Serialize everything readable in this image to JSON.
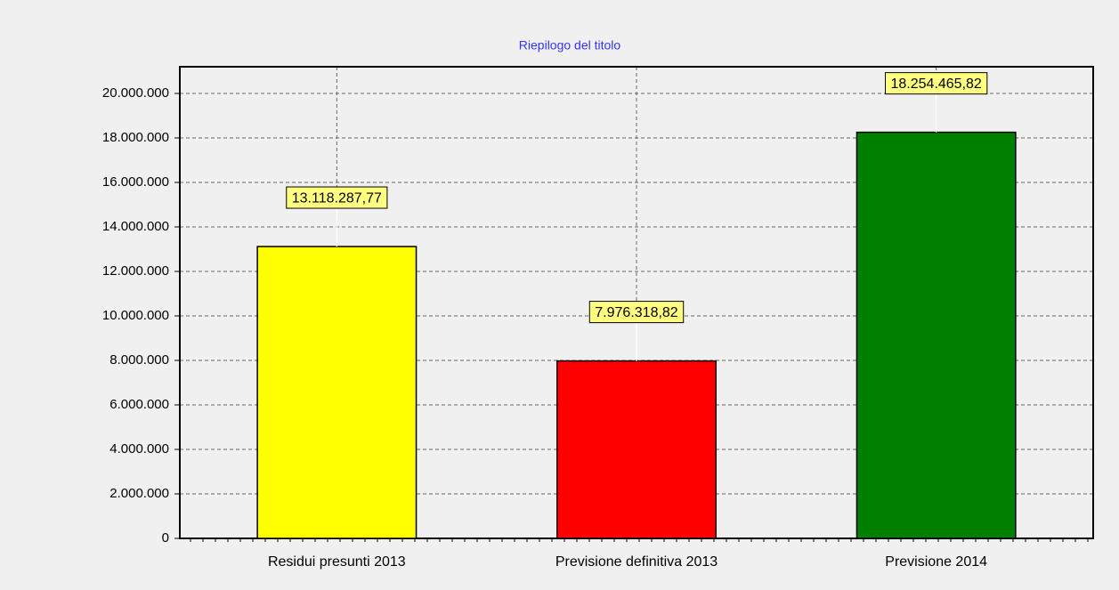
{
  "chart_data": {
    "type": "bar",
    "title": "Riepilogo del titolo",
    "categories": [
      "Residui presunti 2013",
      "Previsione definitiva 2013",
      "Previsione 2014"
    ],
    "values": [
      13118287.77,
      7976318.82,
      18254465.82
    ],
    "value_labels": [
      "13.118.287,77",
      "7.976.318,82",
      "18.254.465,82"
    ],
    "colors": [
      "#ffff00",
      "#ff0000",
      "#008000"
    ],
    "ylim": [
      0,
      21200000
    ],
    "yticks": [
      0,
      {
        "value": 2000000,
        "label": "2.000.000"
      },
      {
        "value": 4000000,
        "label": "4.000.000"
      },
      {
        "value": 6000000,
        "label": "6.000.000"
      },
      {
        "value": 8000000,
        "label": "8.000.000"
      },
      {
        "value": 10000000,
        "label": "10.000.000"
      },
      {
        "value": 12000000,
        "label": "12.000.000"
      },
      {
        "value": 14000000,
        "label": "14.000.000"
      },
      {
        "value": 16000000,
        "label": "16.000.000"
      },
      {
        "value": 18000000,
        "label": "18.000.000"
      },
      {
        "value": 20000000,
        "label": "20.000.000"
      }
    ],
    "grid": true
  }
}
